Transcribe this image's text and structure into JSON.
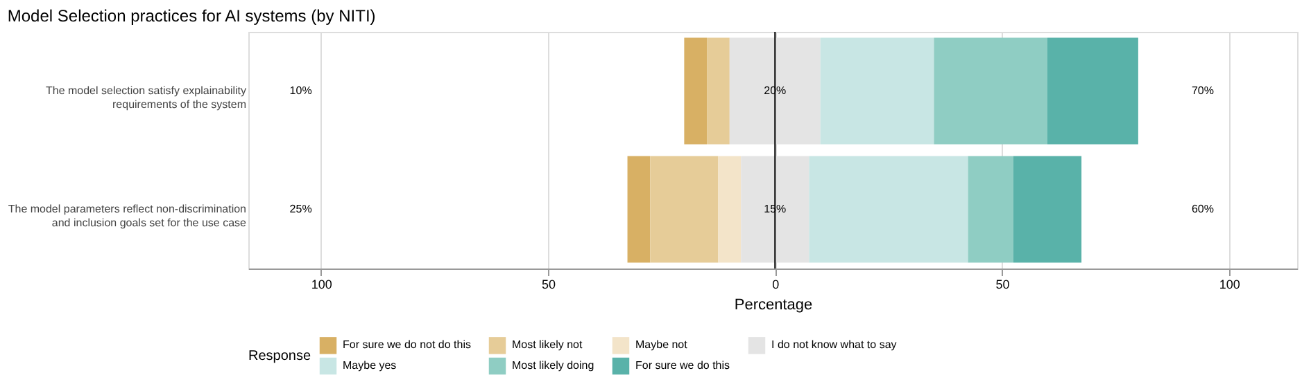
{
  "chart_data": {
    "type": "bar",
    "orientation": "horizontal",
    "title": "Model Selection practices for AI systems (by NITI)",
    "xlabel": "Percentage",
    "legend_title": "Response",
    "categories": [
      "The model selection satisfy explainability requirements of the system",
      "The model parameters reflect non-discrimination and inclusion goals set for the use case"
    ],
    "series": [
      {
        "name": "For sure we do not do this",
        "color": "#d8b064",
        "base": [
          -20,
          -32.5
        ],
        "values": [
          5,
          5
        ]
      },
      {
        "name": "Most likely not",
        "color": "#e6cc98",
        "base": [
          -15,
          -27.5
        ],
        "values": [
          5,
          15
        ]
      },
      {
        "name": "Maybe not",
        "color": "#f3e4c9",
        "base": [
          null,
          -12.5
        ],
        "values": [
          null,
          5
        ]
      },
      {
        "name": "I do not know what to say",
        "color": "#e4e4e4",
        "base": [
          -10,
          -7.5
        ],
        "values": [
          20,
          15
        ]
      },
      {
        "name": "Maybe yes",
        "color": "#c8e6e4",
        "base": [
          10,
          7.5
        ],
        "values": [
          25,
          35
        ]
      },
      {
        "name": "Most likely doing",
        "color": "#8fcdc3",
        "base": [
          35,
          42.5
        ],
        "values": [
          25,
          10
        ]
      },
      {
        "name": "For sure we do this",
        "color": "#59b2a9",
        "base": [
          60,
          52.5
        ],
        "values": [
          20,
          15
        ]
      }
    ],
    "xlim": [
      -116,
      115
    ],
    "xticks": [
      {
        "value": -100,
        "label": "100"
      },
      {
        "value": -50,
        "label": "50"
      },
      0,
      50,
      100
    ],
    "ref_lines": [
      {
        "axis": "x",
        "value": 0,
        "color": "#000000"
      }
    ],
    "annotations": [
      "10%",
      "20%",
      "70%",
      "25%",
      "15%",
      "60%"
    ],
    "grid": "x",
    "legend": "bottom"
  }
}
